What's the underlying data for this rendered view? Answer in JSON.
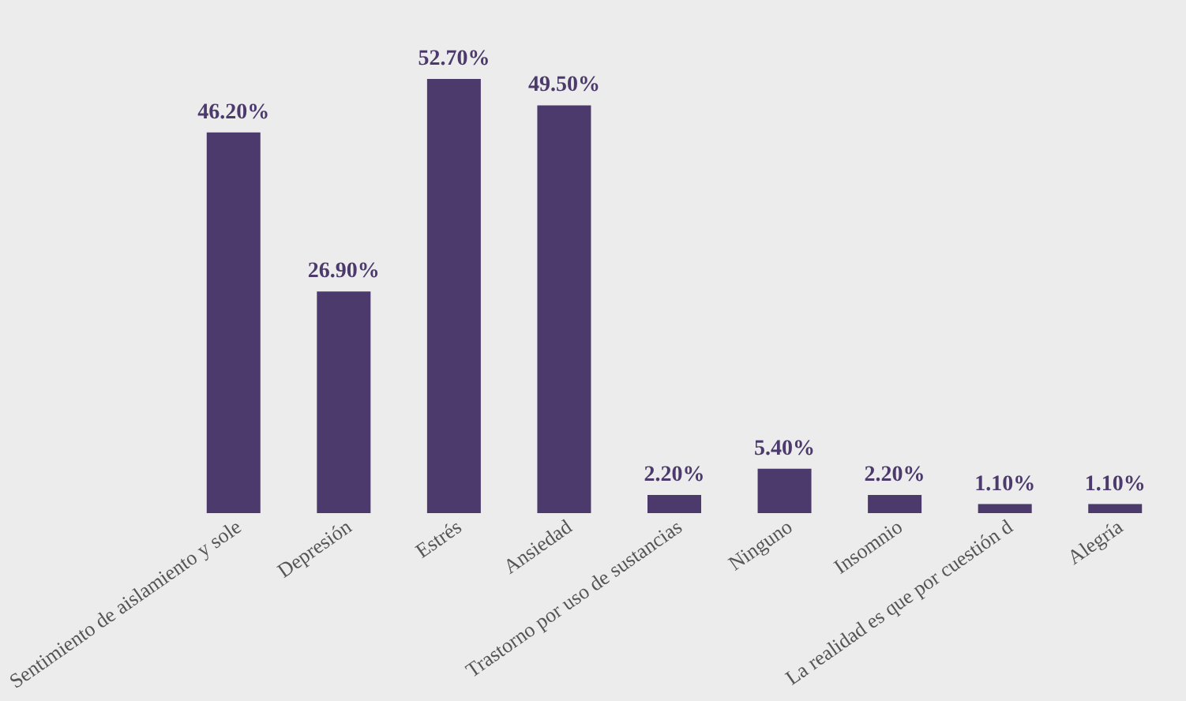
{
  "chart_data": {
    "type": "bar",
    "categories": [
      "Sentimiento de aislamiento y sole",
      "Depresión",
      "Estrés",
      "Ansiedad",
      "Trastorno por uso de sustancias",
      "Ninguno",
      "Insomnio",
      "La realidad es que por cuestión d",
      "Alegría"
    ],
    "values": [
      46.2,
      26.9,
      52.7,
      49.5,
      2.2,
      5.4,
      2.2,
      1.1,
      1.1
    ],
    "value_labels": [
      "46.20%",
      "26.90%",
      "52.70%",
      "49.50%",
      "2.20%",
      "5.40%",
      "2.20%",
      "1.10%",
      "1.10%"
    ],
    "color": "#4b3a6b",
    "grid": false
  }
}
